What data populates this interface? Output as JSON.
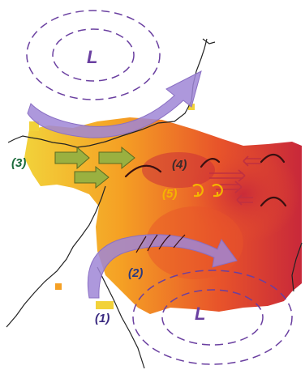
{
  "map": {
    "lows": [
      {
        "label": "L",
        "color": "#6a3fa0"
      },
      {
        "label": "L",
        "color": "#6a3fa0"
      }
    ],
    "annotations": [
      {
        "label": "(1)",
        "color": "#3a2a80"
      },
      {
        "label": "(2)",
        "color": "#2a3a80"
      },
      {
        "label": "(3)",
        "color": "#1a6a3a"
      },
      {
        "label": "(4)",
        "color": "#3a2a2a"
      },
      {
        "label": "(5)",
        "color": "#f5b400"
      }
    ],
    "colors": {
      "rain_light": "#f2d23a",
      "rain_mid": "#f5a024",
      "rain_high": "#e8542a",
      "rain_max": "#c8283a",
      "coast": "#222222",
      "big_arrow": "#9f86d6",
      "green_arrow": "#9ab040",
      "red_arrow": "#c03040",
      "trough": "#3a1010",
      "circulation": "#f5b400"
    }
  }
}
